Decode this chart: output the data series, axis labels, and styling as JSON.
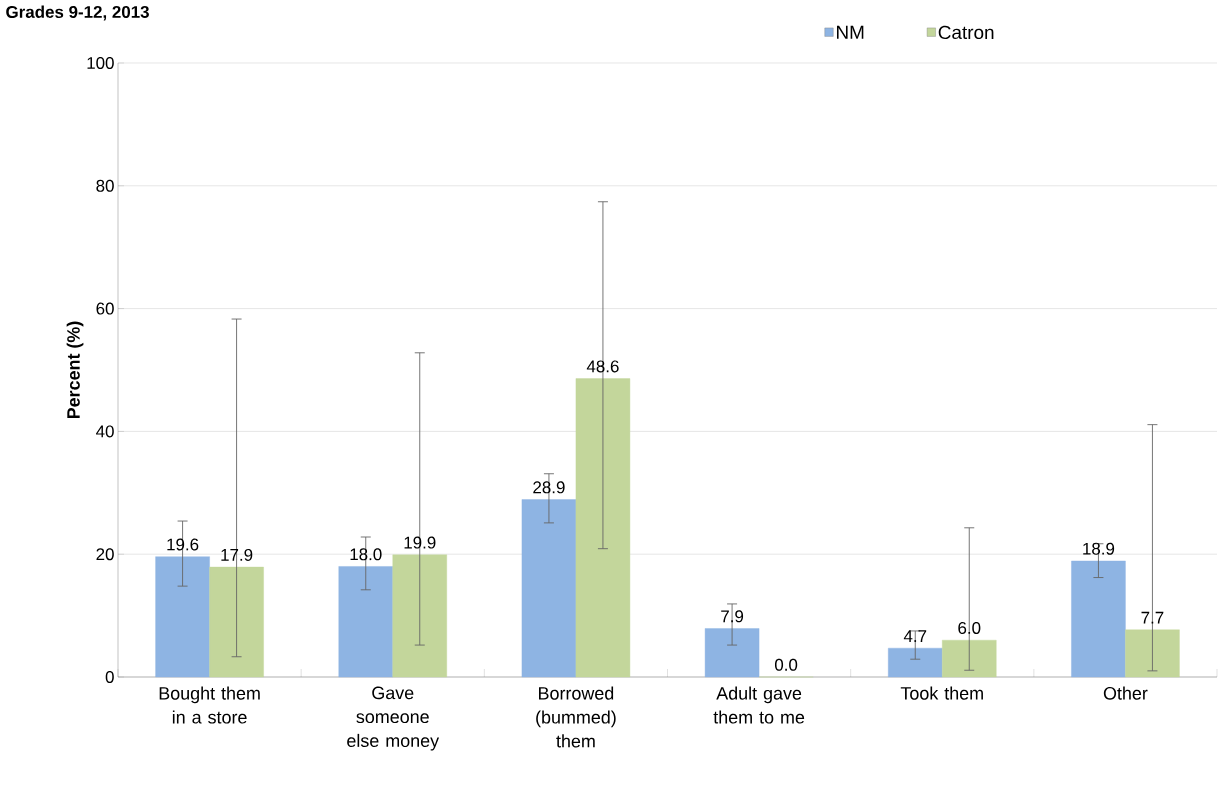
{
  "chart_data": {
    "type": "bar",
    "title": "Grades 9-12, 2013",
    "ylabel": "Percent (%)",
    "categories": [
      "Bought them in a store",
      "Gave someone else money",
      "Borrowed (bummed) them",
      "Adult gave them to me",
      "Took them",
      "Other"
    ],
    "series": [
      {
        "name": "NM",
        "color": "#8eb4e3",
        "values": [
          19.6,
          18.0,
          28.9,
          7.9,
          4.7,
          18.9
        ],
        "value_labels": [
          "19.6",
          "18.0",
          "28.9",
          "7.9",
          "4.7",
          "18.9"
        ],
        "errors": [
          [
            14.8,
            25.4
          ],
          [
            14.2,
            22.8
          ],
          [
            25.1,
            33.1
          ],
          [
            5.2,
            11.9
          ],
          [
            2.9,
            7.5
          ],
          [
            16.2,
            21.7
          ]
        ]
      },
      {
        "name": "Catron",
        "color": "#c3d69b",
        "values": [
          17.9,
          19.9,
          48.6,
          0.0,
          6.0,
          7.7
        ],
        "value_labels": [
          "17.9",
          "19.9",
          "48.6",
          "0.0",
          "6.0",
          "7.7"
        ],
        "errors": [
          [
            3.3,
            58.3
          ],
          [
            5.2,
            52.8
          ],
          [
            20.9,
            77.4
          ],
          null,
          [
            1.1,
            24.3
          ],
          [
            1.0,
            41.1
          ]
        ]
      }
    ],
    "ylim": [
      0,
      100
    ],
    "yticks": [
      0,
      20,
      40,
      60,
      80,
      100
    ],
    "grid": "y",
    "legend": "top right"
  }
}
